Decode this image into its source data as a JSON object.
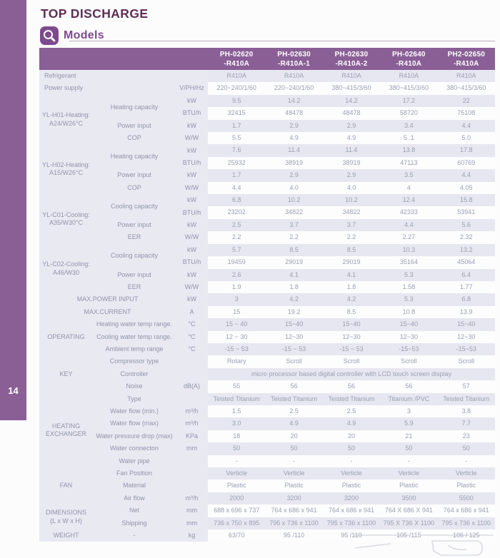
{
  "page": {
    "number": "14",
    "title": "TOP DISCHARGE",
    "section_label": "Models"
  },
  "colors": {
    "accent": "#8a5f96",
    "icon_purple": "#7d4a8c",
    "title_purple": "#5d2f55",
    "row_lavender": "#e6e7f0",
    "label_bg": "#e9e9f2",
    "text_gray": "#9aa0b2"
  },
  "icons": {
    "models_icon": "search-magnifier"
  },
  "table": {
    "columns": [
      {
        "line1": "PH-02620",
        "line2": "-R410A"
      },
      {
        "line1": "PH-02630",
        "line2": "-R410A-1"
      },
      {
        "line1": "PH-02630",
        "line2": "-R410A-2"
      },
      {
        "line1": "PH-02640",
        "line2": "-R410A"
      },
      {
        "line1": "PH2-02650",
        "line2": "-R410A"
      }
    ],
    "rows": [
      {
        "label": "Refrigerant",
        "unit": "",
        "values": [
          "R410A",
          "R410A",
          "R410A",
          "R410A",
          "R410A"
        ]
      },
      {
        "label": "Power supply",
        "unit": "V/PH/Hz",
        "values": [
          "220~240/1/60",
          "220~240/1/60",
          "380~415/3/60",
          "380~415/3/60",
          "380~415/3/60"
        ]
      },
      {
        "group": [
          "YL-H01-Heating:",
          "A24/W26°C"
        ],
        "groupSpan": 4,
        "param": "Heating capacity",
        "paramSpan": 2,
        "unit": "kW",
        "values": [
          "9.5",
          "14.2",
          "14.2",
          "17.2",
          "22"
        ]
      },
      {
        "unit": "BTU/h",
        "values": [
          "32415",
          "48478",
          "48478",
          "58720",
          "75108"
        ]
      },
      {
        "param": "Power input",
        "unit": "kW",
        "values": [
          "1.7",
          "2.9",
          "2.9",
          "3.4",
          "4.4"
        ]
      },
      {
        "param": "COP",
        "unit": "W/W",
        "values": [
          "5.5",
          "4.9",
          "4.9",
          "5..1",
          "5.0"
        ]
      },
      {
        "group": [
          "YL-H02-Heating:",
          "A15/W26°C"
        ],
        "groupSpan": 4,
        "param": "Heating capacity",
        "paramSpan": 2,
        "unit": "kW",
        "values": [
          "7.6",
          "11.4",
          "11.4",
          "13.8",
          "17.8"
        ]
      },
      {
        "unit": "BTU/h",
        "values": [
          "25932",
          "38919",
          "38919",
          "47113",
          "60769"
        ]
      },
      {
        "param": "Power input",
        "unit": "kW",
        "values": [
          "1.7",
          "2.9",
          "2.9",
          "3.5",
          "4.4"
        ]
      },
      {
        "param": "COP",
        "unit": "W/W",
        "values": [
          "4.4",
          "4.0",
          "4.0",
          "4",
          "4.05"
        ]
      },
      {
        "group": [
          "YL-C01-Cooling:",
          "A35/W30°C"
        ],
        "groupSpan": 4,
        "param": "Cooling capacity",
        "paramSpan": 2,
        "unit": "kW",
        "values": [
          "6.8",
          "10.2",
          "10.2",
          "12.4",
          "15.8"
        ]
      },
      {
        "unit": "BTU/h",
        "values": [
          "23202",
          "34822",
          "34822",
          "42333",
          "53941"
        ]
      },
      {
        "param": "Power input",
        "unit": "kW",
        "values": [
          "2.5",
          "3.7",
          "3.7",
          "4.4",
          "5.6"
        ]
      },
      {
        "param": "EER",
        "unit": "W/W",
        "values": [
          "2.2",
          "2.2",
          "2.2",
          "2.27",
          "2.32"
        ]
      },
      {
        "group": [
          "YL-C02-Cooling:",
          "A46/W30"
        ],
        "groupSpan": 4,
        "param": "Cooling capacity",
        "paramSpan": 2,
        "unit": "kW",
        "values": [
          "5.7",
          "8.5",
          "8.5",
          "10.3",
          "13.2"
        ]
      },
      {
        "unit": "BTU/h",
        "values": [
          "19459",
          "29019",
          "29019",
          "35164",
          "45064"
        ]
      },
      {
        "param": "Power input",
        "unit": "kW",
        "values": [
          "2.6",
          "4.1",
          "4.1",
          "5.3",
          "6.4"
        ]
      },
      {
        "param": "EER",
        "unit": "W/W",
        "values": [
          "1.9",
          "1.8",
          "1.8",
          "1.58",
          "1.77"
        ]
      },
      {
        "label": "MAX.POWER INPUT",
        "labelAlign": "center",
        "unit": "kW",
        "values": [
          "3",
          "4.2",
          "4.2",
          "5.3",
          "6.8"
        ]
      },
      {
        "label": "MAX.CURRENT",
        "labelAlign": "center",
        "unit": "A",
        "values": [
          "15",
          "19.2",
          "8.5",
          "10.8",
          "13.9"
        ]
      },
      {
        "group": [
          "OPERATING"
        ],
        "groupSpan": 3,
        "param": "Heating water temp range.",
        "unit": "°C",
        "values": [
          "15 ~ 40",
          "15~40",
          "15~40",
          "15~40",
          "15~40"
        ]
      },
      {
        "param": "Cooling water temp range.",
        "unit": "°C",
        "values": [
          "12 ~ 30",
          "12~30",
          "12~30",
          "12~30",
          "12~30"
        ]
      },
      {
        "param": "Ambient temp range",
        "unit": "°C",
        "values": [
          "-15 ~ 53",
          "-15 ~ 53",
          "-15 ~ 53",
          "-15~53",
          "-15~53"
        ]
      },
      {
        "group": [
          "KEY"
        ],
        "groupSpan": 3,
        "param": "Compressor type",
        "unit": "",
        "values": [
          "Rotary",
          "Scroll",
          "Scroll",
          "Scroll",
          "Scroll"
        ]
      },
      {
        "param": "Controller",
        "unit": "",
        "valueSpan": "micro processor based digital controller with LCD touch screen display"
      },
      {
        "param": "Noise",
        "unit": "dB(A)",
        "values": [
          "55",
          "56",
          "56",
          "56",
          "57"
        ]
      },
      {
        "group": [
          "HEATING",
          "EXCHANGER"
        ],
        "groupSpan": 6,
        "param": "Type",
        "unit": "",
        "values": [
          "Teisted Titanium",
          "Teisted Titanium",
          "Teisted Titanium",
          "Titanium /PVC",
          "Teisted Titanium"
        ]
      },
      {
        "param": "Water flow (min.)",
        "unit": "m³/h",
        "values": [
          "1.5",
          "2.5",
          "2.5",
          "3",
          "3.8"
        ]
      },
      {
        "param": "Water flow (max)",
        "unit": "m³/h",
        "values": [
          "3.0",
          "4.9",
          "4.9",
          "5.9",
          "7.7"
        ]
      },
      {
        "param": "Water pressure drop (max)",
        "unit": "KPa",
        "values": [
          "18",
          "20",
          "20",
          "21",
          "23"
        ]
      },
      {
        "param": "Water connecton",
        "unit": "mm",
        "values": [
          "50",
          "50",
          "50",
          "50",
          "50"
        ]
      },
      {
        "param": "Water pipe",
        "unit": "",
        "values": [
          "-",
          "-",
          "-",
          "-",
          "-"
        ]
      },
      {
        "group": [
          "FAN"
        ],
        "groupSpan": 3,
        "param": "Fan Position",
        "unit": "",
        "values": [
          "Verticle",
          "Verticle",
          "Verticle",
          "Verticle",
          "Verticle"
        ]
      },
      {
        "param": "Material",
        "unit": "",
        "values": [
          "Plastic",
          "Plastic",
          "Plastic",
          "Plastic",
          "Plastic"
        ]
      },
      {
        "param": "Air flow",
        "unit": "m³/h",
        "values": [
          "2000",
          "3200",
          "3200",
          "3500",
          "5500"
        ]
      },
      {
        "group": [
          "DIMENSIONS",
          "(L x W x H)"
        ],
        "groupSpan": 2,
        "param": "Net",
        "unit": "mm",
        "values": [
          "688 x 696 x 737",
          "764 x 686 x 941",
          "764 x 686 x 941",
          "764 X 686 X 941",
          "764 x 686 x 941"
        ]
      },
      {
        "param": "Shipping",
        "unit": "mm",
        "values": [
          "736 x 750 x 895",
          "795 x 736 x 1100",
          "795 x 736 x 1100",
          "795 X 736 X 1100",
          "795 x 736 x 1100"
        ]
      },
      {
        "group": [
          "WEIGHT"
        ],
        "groupSpan": 1,
        "param": "-",
        "unit": "kg",
        "values": [
          "63/70",
          "95 /110",
          "95 /110",
          "105 /115",
          "106 / 125"
        ]
      }
    ]
  }
}
